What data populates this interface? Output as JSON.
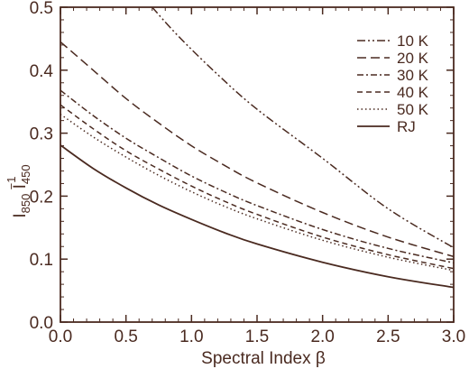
{
  "chart_data": {
    "type": "line",
    "xlabel": "Spectral Index β",
    "ylabel": {
      "main1": "I",
      "sub1": "850",
      "main2": " I",
      "sub2": "450",
      "sup2": "−1"
    },
    "xlim": [
      0.0,
      3.0
    ],
    "ylim": [
      0.0,
      0.5
    ],
    "x_ticks": [
      "0.0",
      "0.5",
      "1.0",
      "1.5",
      "2.0",
      "2.5",
      "3.0"
    ],
    "y_ticks": [
      "0.0",
      "0.1",
      "0.2",
      "0.3",
      "0.4",
      "0.5"
    ],
    "grid": false,
    "legend_position": "top-right",
    "line_color": "#4a2a20",
    "series": [
      {
        "name": "10 K",
        "dash": "dash-dot-dot",
        "x": [
          0.7,
          0.9,
          1.2,
          1.5,
          2.0,
          2.5,
          3.0
        ],
        "y": [
          0.5,
          0.454,
          0.393,
          0.338,
          0.26,
          0.18,
          0.118
        ]
      },
      {
        "name": "20 K",
        "dash": "long-dash",
        "x": [
          0.0,
          0.25,
          0.5,
          0.75,
          1.0,
          1.25,
          1.5,
          2.0,
          2.5,
          3.0
        ],
        "y": [
          0.445,
          0.4,
          0.355,
          0.316,
          0.28,
          0.249,
          0.221,
          0.174,
          0.135,
          0.104
        ]
      },
      {
        "name": "30 K",
        "dash": "dash-dot",
        "x": [
          0.0,
          0.25,
          0.5,
          0.75,
          1.0,
          1.25,
          1.5,
          2.0,
          2.5,
          3.0
        ],
        "y": [
          0.368,
          0.328,
          0.292,
          0.261,
          0.232,
          0.207,
          0.185,
          0.147,
          0.117,
          0.094
        ]
      },
      {
        "name": "40 K",
        "dash": "dash",
        "x": [
          0.0,
          0.25,
          0.5,
          0.75,
          1.0,
          1.25,
          1.5,
          2.0,
          2.5,
          3.0
        ],
        "y": [
          0.345,
          0.307,
          0.272,
          0.243,
          0.216,
          0.192,
          0.171,
          0.135,
          0.107,
          0.085
        ]
      },
      {
        "name": "50 K",
        "dash": "dot",
        "x": [
          0.0,
          0.25,
          0.5,
          0.75,
          1.0,
          1.25,
          1.5,
          2.0,
          2.5,
          3.0
        ],
        "y": [
          0.33,
          0.294,
          0.262,
          0.233,
          0.207,
          0.184,
          0.164,
          0.13,
          0.103,
          0.082
        ]
      },
      {
        "name": "RJ",
        "dash": "solid",
        "x": [
          0.0,
          0.25,
          0.5,
          0.75,
          1.0,
          1.25,
          1.5,
          2.0,
          2.5,
          3.0
        ],
        "y": [
          0.281,
          0.244,
          0.213,
          0.186,
          0.163,
          0.142,
          0.124,
          0.095,
          0.072,
          0.055
        ]
      }
    ]
  }
}
